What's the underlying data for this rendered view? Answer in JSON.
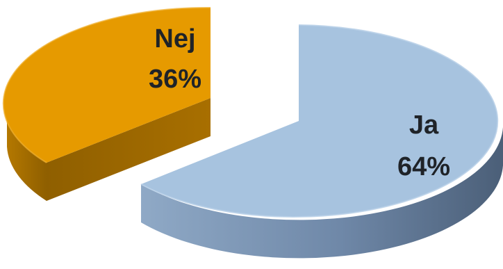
{
  "chart_data": {
    "type": "pie",
    "style": "3d-exploded",
    "slices": [
      {
        "name": "Ja",
        "value": 64,
        "label": "Ja",
        "value_label": "64%",
        "color": "#a7c3df",
        "side_color": "#7f9bb8"
      },
      {
        "name": "Nej",
        "value": 36,
        "label": "Nej",
        "value_label": "36%",
        "color": "#e69a00",
        "side_color": "#a86a00"
      }
    ]
  }
}
